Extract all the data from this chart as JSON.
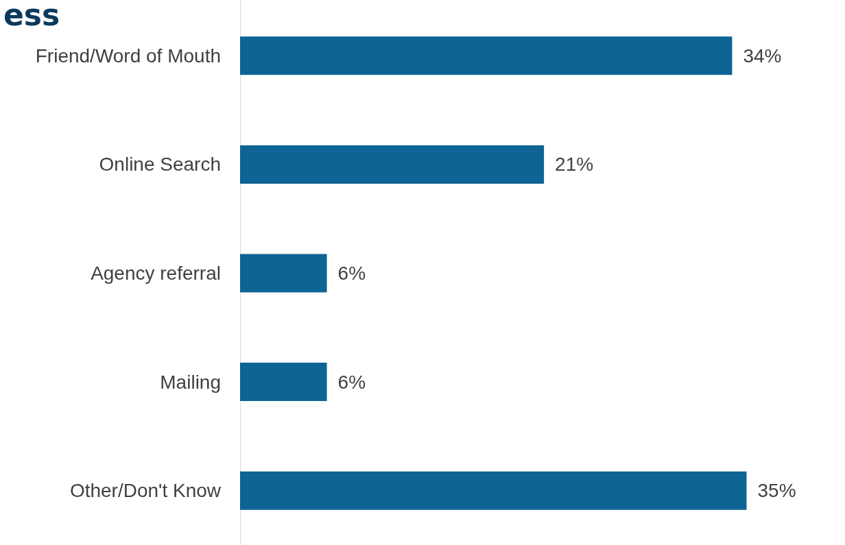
{
  "chart_data": {
    "type": "bar",
    "orientation": "horizontal",
    "title": "ess",
    "categories": [
      "Friend/Word of Mouth",
      "Online Search",
      "Agency referral",
      "Mailing",
      "Other/Don't Know"
    ],
    "values": [
      34,
      21,
      6,
      6,
      35
    ],
    "value_labels": [
      "34%",
      "21%",
      "6%",
      "6%",
      "35%"
    ],
    "color": "#0e6494"
  }
}
